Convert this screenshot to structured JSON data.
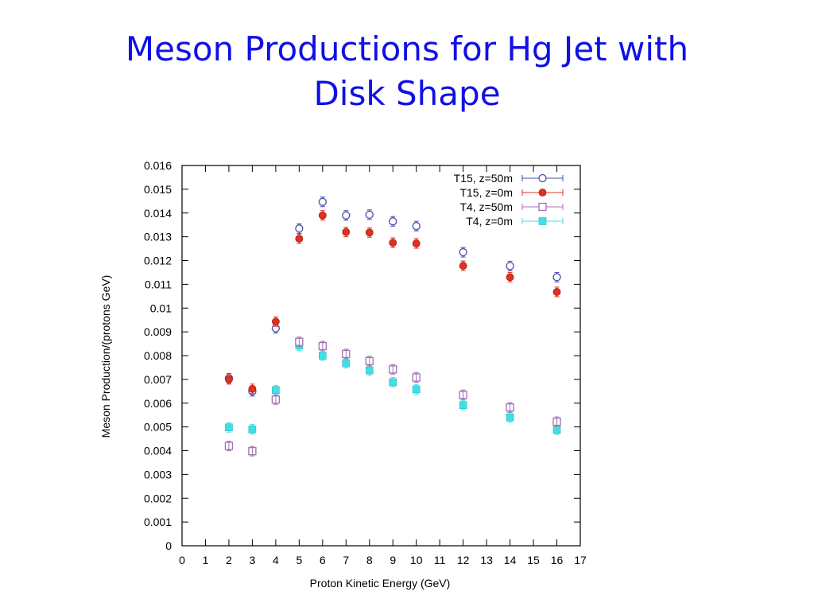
{
  "slide": {
    "title_line1": "Meson Productions for Hg Jet with",
    "title_line2": "Disk Shape"
  },
  "chart_data": {
    "type": "scatter",
    "title": "Meson Productions for Hg Jet with Disk Shape",
    "xlabel": "Proton Kinetic Energy (GeV)",
    "ylabel": "Meson Production/(protons GeV)",
    "xlim": [
      0,
      17
    ],
    "ylim": [
      0,
      0.016
    ],
    "xticks": [
      "0",
      "1",
      "2",
      "3",
      "4",
      "5",
      "6",
      "7",
      "8",
      "9",
      "10",
      "11",
      "12",
      "13",
      "14",
      "15",
      "16",
      "17"
    ],
    "yticks": [
      "0",
      "0.001",
      "0.002",
      "0.003",
      "0.004",
      "0.005",
      "0.006",
      "0.007",
      "0.008",
      "0.009",
      "0.01",
      "0.011",
      "0.012",
      "0.013",
      "0.014",
      "0.015",
      "0.016"
    ],
    "grid": false,
    "legend": "top-right",
    "x": [
      2,
      3,
      4,
      5,
      6,
      7,
      8,
      9,
      10,
      12,
      14,
      16
    ],
    "series": [
      {
        "name": "T15, z=50m",
        "marker": "open-circle",
        "color": "#4a4aa8",
        "values": [
          0.00705,
          0.0065,
          0.00915,
          0.01335,
          0.01447,
          0.0139,
          0.01393,
          0.01365,
          0.01345,
          0.01235,
          0.01177,
          0.0113
        ]
      },
      {
        "name": "T15, z=0m",
        "marker": "filled-circle",
        "color": "#e03020",
        "values": [
          0.007,
          0.0066,
          0.00943,
          0.01292,
          0.0139,
          0.0132,
          0.01318,
          0.01275,
          0.01272,
          0.01178,
          0.0113,
          0.01068
        ]
      },
      {
        "name": "T4, z=50m",
        "marker": "open-square",
        "color": "#a070b0",
        "values": [
          0.0042,
          0.00398,
          0.00615,
          0.00858,
          0.0084,
          0.00807,
          0.00777,
          0.00742,
          0.00708,
          0.00635,
          0.00582,
          0.00522
        ]
      },
      {
        "name": "T4, z=0m",
        "marker": "filled-square",
        "color": "#40e0e8",
        "values": [
          0.00498,
          0.0049,
          0.00655,
          0.00842,
          0.008,
          0.00768,
          0.00738,
          0.00688,
          0.00658,
          0.00592,
          0.0054,
          0.00488
        ]
      }
    ]
  }
}
